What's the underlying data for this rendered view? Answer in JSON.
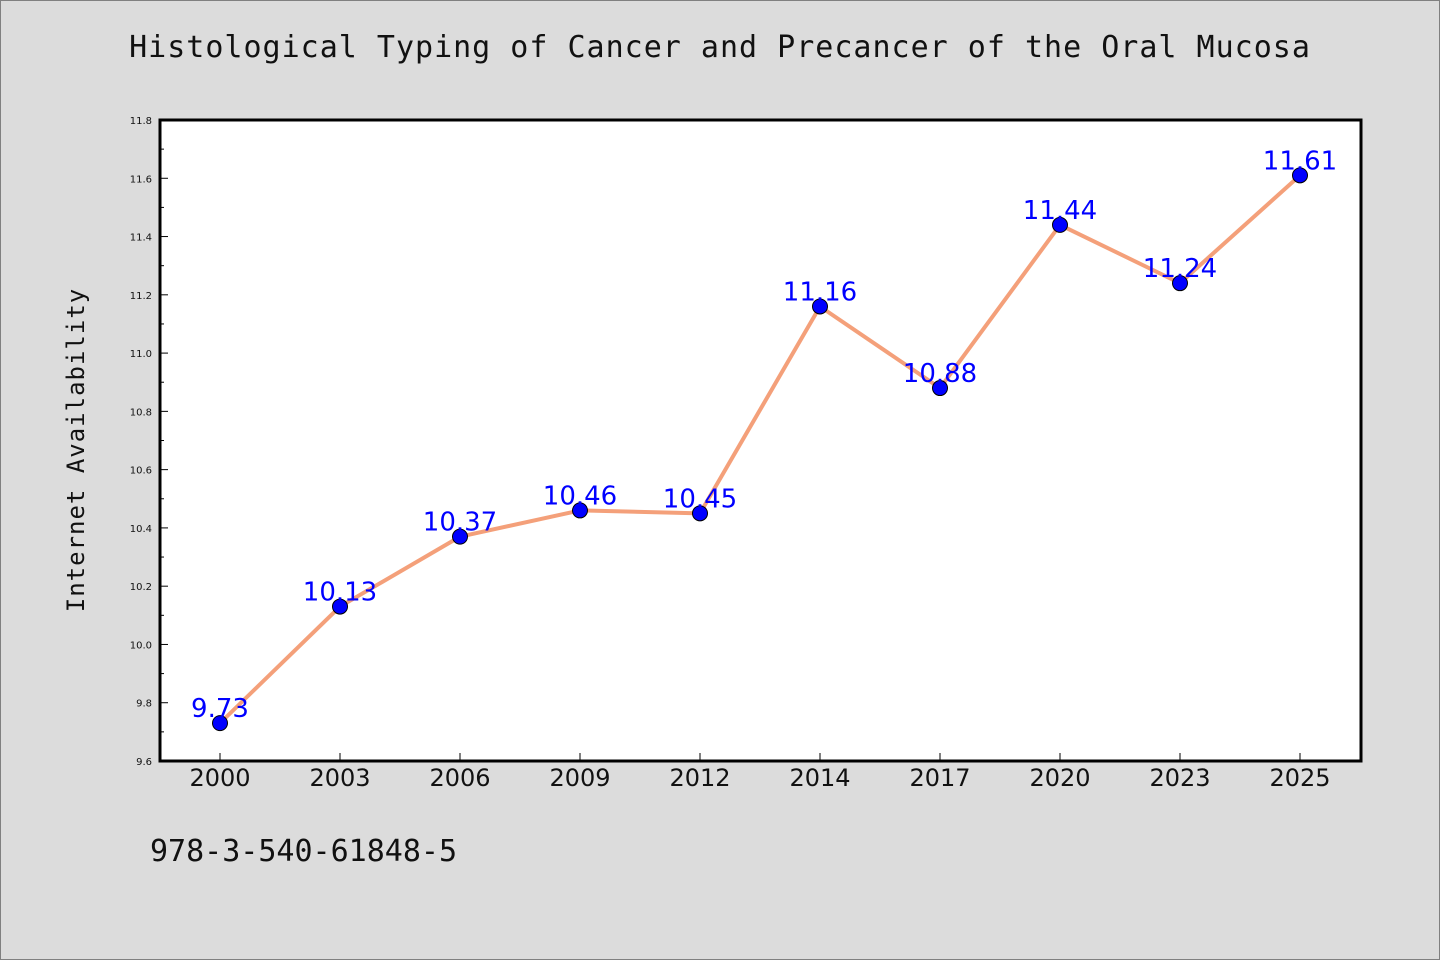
{
  "chart_data": {
    "type": "line",
    "title": "Histological Typing of Cancer and Precancer of the Oral Mucosa",
    "xlabel": "",
    "ylabel": "Internet Availability",
    "categories": [
      "2000",
      "2003",
      "2006",
      "2009",
      "2012",
      "2014",
      "2017",
      "2020",
      "2023",
      "2025"
    ],
    "series": [
      {
        "values": [
          9.73,
          10.13,
          10.37,
          10.46,
          10.45,
          11.16,
          10.88,
          11.44,
          11.24,
          11.61
        ],
        "labels": [
          "9.73",
          "10.13",
          "10.37",
          "10.46",
          "10.45",
          "11.16",
          "10.88",
          "11.44",
          "11.24",
          "11.61"
        ],
        "line_color": "#f4a07a",
        "marker_color": "#0000ff"
      }
    ],
    "ylim": [
      9.6,
      11.8
    ],
    "yticks": [
      "9.6",
      "9.8",
      "10.0",
      "10.2",
      "10.4",
      "10.6",
      "10.8",
      "11.0",
      "11.2",
      "11.4",
      "11.6",
      "11.8"
    ],
    "grid": false,
    "legend": "none"
  },
  "footer": {
    "isbn": "978-3-540-61848-5"
  }
}
